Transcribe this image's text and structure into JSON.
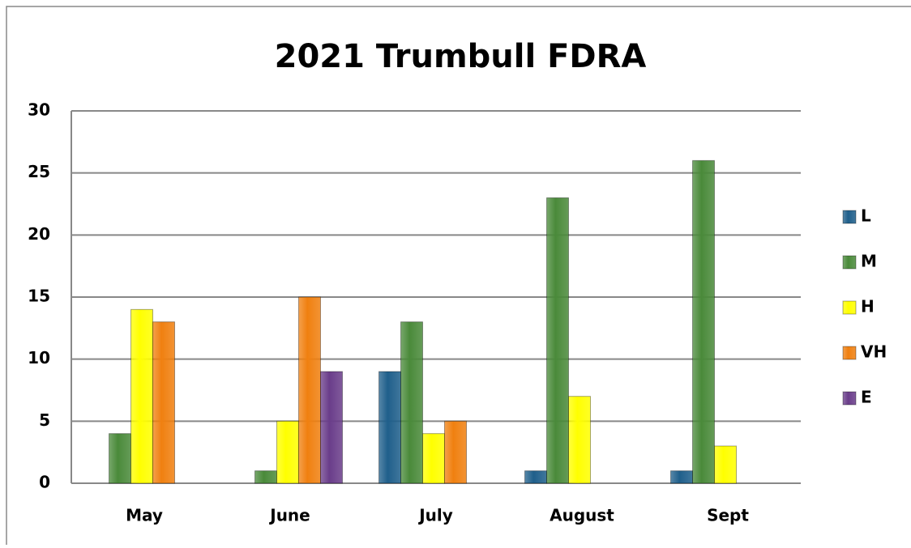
{
  "chart_data": {
    "type": "bar",
    "title": "2021 Trumbull FDRA",
    "categories": [
      "May",
      "June",
      "July",
      "August",
      "Sept"
    ],
    "series": [
      {
        "name": "L",
        "color": "#1f5f8b",
        "values": [
          0,
          0,
          9,
          1,
          1
        ]
      },
      {
        "name": "M",
        "color": "#4a8a3a",
        "values": [
          4,
          1,
          13,
          23,
          26
        ]
      },
      {
        "name": "H",
        "color": "#ffff00",
        "values": [
          14,
          5,
          4,
          7,
          3
        ]
      },
      {
        "name": "VH",
        "color": "#f08010",
        "values": [
          13,
          15,
          5,
          0,
          0
        ]
      },
      {
        "name": "E",
        "color": "#6a3d8a",
        "values": [
          0,
          9,
          0,
          0,
          0
        ]
      }
    ],
    "ylim": [
      0,
      30
    ],
    "yticks": [
      0,
      5,
      10,
      15,
      20,
      25,
      30
    ],
    "grid": true,
    "legend": "right"
  }
}
